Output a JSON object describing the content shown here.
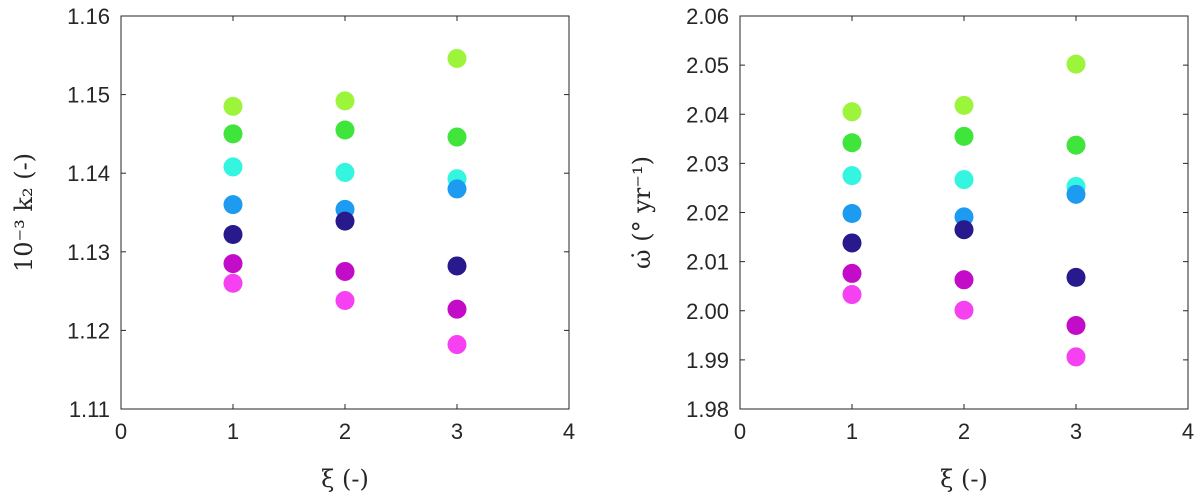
{
  "chart_data": [
    {
      "type": "scatter",
      "xlabel": "ξ (-)",
      "ylabel": "10⁻³ k₂ (-)",
      "xlim": [
        0,
        4
      ],
      "ylim": [
        1.11,
        1.16
      ],
      "xticks": [
        0,
        1,
        2,
        3,
        4
      ],
      "xtick_labels": [
        "0",
        "1",
        "2",
        "3",
        "4"
      ],
      "yticks": [
        1.11,
        1.12,
        1.13,
        1.14,
        1.15,
        1.16
      ],
      "ytick_labels": [
        "1.11",
        "1.12",
        "1.13",
        "1.14",
        "1.15",
        "1.16"
      ],
      "grid": false,
      "series": [
        {
          "color": "#9df53b",
          "x": [
            1,
            2,
            3
          ],
          "y": [
            1.1485,
            1.1492,
            1.1546
          ]
        },
        {
          "color": "#3fe53a",
          "x": [
            1,
            2,
            3
          ],
          "y": [
            1.145,
            1.1455,
            1.1446
          ]
        },
        {
          "color": "#33f5e0",
          "x": [
            1,
            2,
            3
          ],
          "y": [
            1.1408,
            1.1401,
            1.1393
          ]
        },
        {
          "color": "#1c9bf0",
          "x": [
            1,
            2,
            3
          ],
          "y": [
            1.136,
            1.1354,
            1.138
          ]
        },
        {
          "color": "#281a8c",
          "x": [
            1,
            2,
            3
          ],
          "y": [
            1.1322,
            1.1339,
            1.1282
          ]
        },
        {
          "color": "#c20cc7",
          "x": [
            1,
            2,
            3
          ],
          "y": [
            1.1285,
            1.1275,
            1.1227
          ]
        },
        {
          "color": "#f641f2",
          "x": [
            1,
            2,
            3
          ],
          "y": [
            1.126,
            1.1238,
            1.1182
          ]
        }
      ]
    },
    {
      "type": "scatter",
      "xlabel": "ξ (-)",
      "ylabel": "ω̇ (° yr⁻¹)",
      "xlim": [
        0,
        4
      ],
      "ylim": [
        1.98,
        2.06
      ],
      "xticks": [
        0,
        1,
        2,
        3,
        4
      ],
      "xtick_labels": [
        "0",
        "1",
        "2",
        "3",
        "4"
      ],
      "yticks": [
        1.98,
        1.99,
        2.0,
        2.01,
        2.02,
        2.03,
        2.04,
        2.05,
        2.06
      ],
      "ytick_labels": [
        "1.98",
        "1.99",
        "2.00",
        "2.01",
        "2.02",
        "2.03",
        "2.04",
        "2.05",
        "2.06"
      ],
      "grid": false,
      "series": [
        {
          "color": "#9df53b",
          "x": [
            1,
            2,
            3
          ],
          "y": [
            2.0405,
            2.0418,
            2.0502
          ]
        },
        {
          "color": "#3fe53a",
          "x": [
            1,
            2,
            3
          ],
          "y": [
            2.0342,
            2.0355,
            2.0337
          ]
        },
        {
          "color": "#33f5e0",
          "x": [
            1,
            2,
            3
          ],
          "y": [
            2.0275,
            2.0267,
            2.0253
          ]
        },
        {
          "color": "#1c9bf0",
          "x": [
            1,
            2,
            3
          ],
          "y": [
            2.0198,
            2.0191,
            2.0237
          ]
        },
        {
          "color": "#281a8c",
          "x": [
            1,
            2,
            3
          ],
          "y": [
            2.0138,
            2.0165,
            2.0068
          ]
        },
        {
          "color": "#c20cc7",
          "x": [
            1,
            2,
            3
          ],
          "y": [
            2.0076,
            2.0063,
            1.997
          ]
        },
        {
          "color": "#f641f2",
          "x": [
            1,
            2,
            3
          ],
          "y": [
            2.0033,
            2.0001,
            1.9906
          ]
        }
      ]
    }
  ]
}
